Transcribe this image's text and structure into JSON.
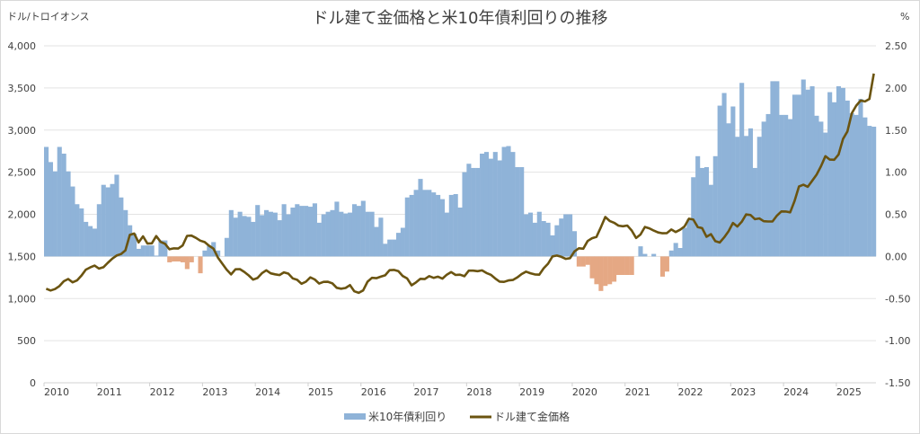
{
  "chart_data": {
    "type": "bar+line",
    "title": "ドル建て金価格と米10年債利回りの推移",
    "ylabel_left": "ドル/トロイオンス",
    "ylabel_right": "%",
    "left_ylim": [
      0,
      4000
    ],
    "right_ylim": [
      -1.5,
      2.5
    ],
    "left_ticks": [
      "0",
      "500",
      "1,000",
      "1,500",
      "2,000",
      "2,500",
      "3,000",
      "3,500",
      "4,000"
    ],
    "right_ticks": [
      "-1.50",
      "-1.00",
      "-0.50",
      "0.00",
      "0.50",
      "1.00",
      "1.50",
      "2.00",
      "2.50"
    ],
    "x_ticks": [
      "2010",
      "2011",
      "2012",
      "2013",
      "2014",
      "2015",
      "2016",
      "2017",
      "2018",
      "2019",
      "2020",
      "2021",
      "2022",
      "2023",
      "2024",
      "2025"
    ],
    "x_start": "2010-01",
    "x_end": "2025-09",
    "frequency": "monthly",
    "grid": true,
    "legend_position": "bottom",
    "colors": {
      "yield_pos": "#8fb3d8",
      "yield_neg": "#e5a884",
      "gold": "#6b5410",
      "grid": "#e3e3e3"
    },
    "series": [
      {
        "name": "米10年債利回り",
        "type": "bar",
        "axis": "right",
        "values": [
          1.3,
          1.12,
          1.01,
          1.3,
          1.22,
          1.01,
          0.83,
          0.62,
          0.57,
          0.41,
          0.36,
          0.33,
          0.62,
          0.85,
          0.82,
          0.86,
          0.97,
          0.7,
          0.55,
          0.37,
          0.27,
          0.09,
          0.13,
          0.13,
          0.13,
          0.01,
          0.19,
          0.19,
          -0.07,
          -0.06,
          -0.06,
          -0.07,
          -0.15,
          -0.07,
          0.0,
          -0.2,
          0.07,
          0.13,
          0.17,
          0.07,
          0.0,
          0.22,
          0.55,
          0.46,
          0.53,
          0.48,
          0.47,
          0.41,
          0.61,
          0.49,
          0.55,
          0.53,
          0.52,
          0.43,
          0.62,
          0.5,
          0.58,
          0.62,
          0.6,
          0.6,
          0.59,
          0.63,
          0.4,
          0.5,
          0.53,
          0.55,
          0.65,
          0.53,
          0.51,
          0.52,
          0.62,
          0.6,
          0.66,
          0.53,
          0.53,
          0.35,
          0.46,
          0.15,
          0.2,
          0.2,
          0.28,
          0.34,
          0.7,
          0.73,
          0.79,
          0.92,
          0.79,
          0.79,
          0.76,
          0.73,
          0.68,
          0.52,
          0.73,
          0.74,
          0.58,
          1.0,
          1.1,
          1.05,
          1.05,
          1.22,
          1.24,
          1.16,
          1.24,
          1.14,
          1.3,
          1.31,
          1.24,
          1.06,
          1.06,
          0.5,
          0.52,
          0.4,
          0.53,
          0.42,
          0.4,
          0.25,
          0.37,
          0.45,
          0.5,
          0.5,
          0.3,
          -0.12,
          -0.12,
          -0.1,
          -0.26,
          -0.33,
          -0.41,
          -0.35,
          -0.33,
          -0.3,
          -0.22,
          -0.22,
          -0.22,
          -0.22,
          0.0,
          0.12,
          0.03,
          0.0,
          0.03,
          0.0,
          -0.24,
          -0.18,
          0.07,
          0.16,
          0.1,
          0.34,
          0.44,
          0.94,
          1.19,
          1.05,
          1.06,
          0.85,
          1.19,
          1.79,
          1.94,
          1.58,
          1.78,
          1.42,
          2.06,
          1.43,
          1.52,
          1.05,
          1.42,
          1.6,
          1.69,
          2.08,
          2.08,
          1.68,
          1.68,
          1.63,
          1.92,
          1.92,
          2.1,
          1.98,
          2.02,
          1.67,
          1.6,
          1.47,
          1.95,
          1.83,
          2.02,
          2.0,
          1.85,
          1.7,
          1.68,
          1.87,
          1.65,
          1.55,
          1.54
        ]
      },
      {
        "name": "ドル建て金価格",
        "type": "line",
        "axis": "left",
        "values": [
          1117,
          1095,
          1113,
          1148,
          1205,
          1232,
          1193,
          1215,
          1271,
          1343,
          1370,
          1391,
          1356,
          1372,
          1424,
          1473,
          1510,
          1529,
          1572,
          1756,
          1772,
          1666,
          1739,
          1652,
          1656,
          1742,
          1673,
          1650,
          1585,
          1596,
          1594,
          1630,
          1744,
          1747,
          1721,
          1688,
          1670,
          1627,
          1593,
          1487,
          1414,
          1343,
          1286,
          1347,
          1349,
          1316,
          1275,
          1225,
          1244,
          1300,
          1336,
          1299,
          1287,
          1279,
          1311,
          1296,
          1239,
          1222,
          1176,
          1200,
          1251,
          1227,
          1178,
          1198,
          1199,
          1181,
          1128,
          1117,
          1125,
          1159,
          1086,
          1068,
          1097,
          1200,
          1246,
          1242,
          1260,
          1276,
          1337,
          1340,
          1326,
          1267,
          1238,
          1157,
          1192,
          1234,
          1231,
          1266,
          1246,
          1260,
          1236,
          1283,
          1314,
          1280,
          1283,
          1265,
          1331,
          1331,
          1325,
          1334,
          1303,
          1282,
          1238,
          1201,
          1198,
          1215,
          1220,
          1250,
          1291,
          1320,
          1300,
          1286,
          1283,
          1359,
          1413,
          1500,
          1510,
          1495,
          1471,
          1480,
          1560,
          1597,
          1591,
          1683,
          1716,
          1732,
          1846,
          1968,
          1921,
          1900,
          1866,
          1858,
          1867,
          1808,
          1718,
          1760,
          1850,
          1834,
          1807,
          1785,
          1775,
          1777,
          1820,
          1790,
          1817,
          1856,
          1948,
          1937,
          1849,
          1836,
          1733,
          1764,
          1681,
          1665,
          1726,
          1798,
          1898,
          1855,
          1912,
          1999,
          1992,
          1942,
          1951,
          1918,
          1915,
          1916,
          1985,
          2034,
          2033,
          2023,
          2159,
          2331,
          2351,
          2326,
          2398,
          2470,
          2571,
          2690,
          2650,
          2648,
          2710,
          2894,
          2983,
          3200,
          3290,
          3350,
          3340,
          3370,
          3670
        ]
      }
    ]
  }
}
